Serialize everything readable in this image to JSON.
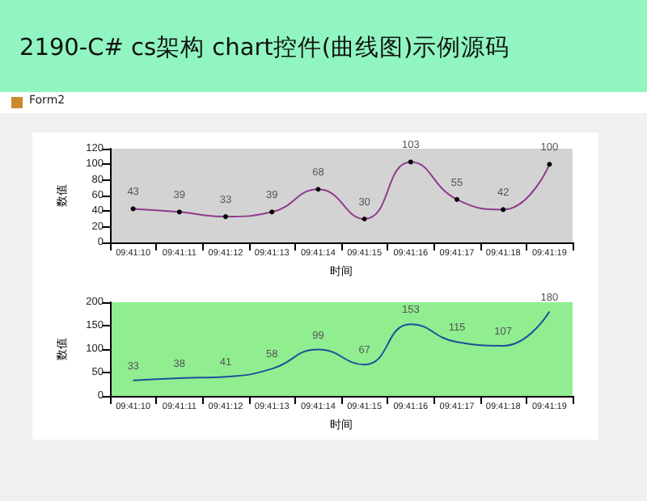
{
  "chart_data": [
    {
      "type": "line",
      "title": "2190-C# cs架构 chart控件(曲线图)示例源码",
      "annotations": [
        "Form2"
      ],
      "xlabel": "时间",
      "ylabel": "数值",
      "categories": [
        "09:41:10",
        "09:41:11",
        "09:41:12",
        "09:41:13",
        "09:41:14",
        "09:41:15",
        "09:41:16",
        "09:41:17",
        "09:41:18",
        "09:41:19"
      ],
      "series": [
        {
          "color": "#8e3a8e",
          "values": [
            43,
            39,
            33,
            39,
            68,
            30,
            103,
            55,
            42,
            100
          ]
        }
      ],
      "ylim": [
        0,
        120
      ],
      "yticks": [
        0,
        20,
        40,
        60,
        80,
        100,
        120
      ],
      "data_labels": true,
      "marker": "circle",
      "grid": false
    },
    {
      "type": "line",
      "xlabel": "时间",
      "ylabel": "数值",
      "categories": [
        "09:41:10",
        "09:41:11",
        "09:41:12",
        "09:41:13",
        "09:41:14",
        "09:41:15",
        "09:41:16",
        "09:41:17",
        "09:41:18",
        "09:41:19"
      ],
      "series": [
        {
          "color": "#1f4e9a",
          "values": [
            33,
            38,
            41,
            58,
            99,
            67,
            153,
            115,
            107,
            180
          ]
        }
      ],
      "ylim": [
        0,
        200
      ],
      "yticks": [
        0,
        50,
        100,
        150,
        200
      ],
      "data_labels": true,
      "marker": "none",
      "grid": false
    }
  ]
}
